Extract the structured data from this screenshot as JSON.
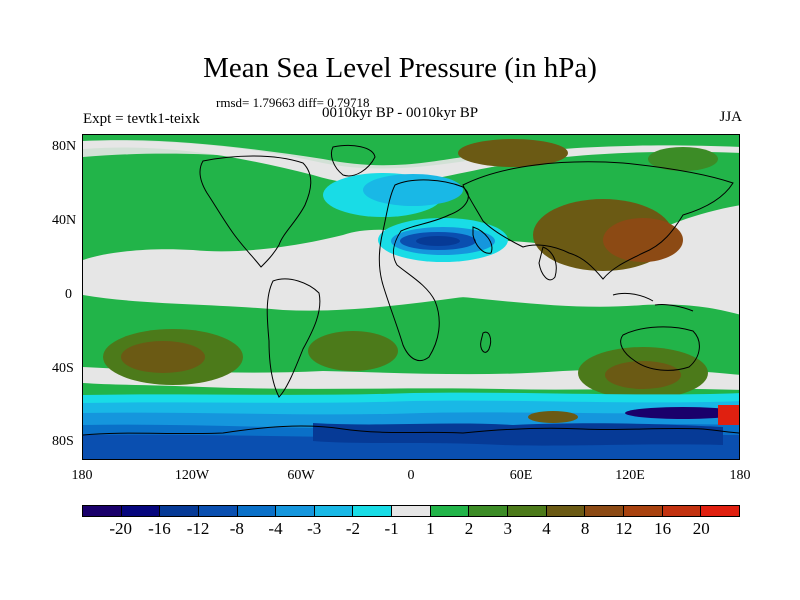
{
  "title": "Mean Sea Level Pressure (in hPa)",
  "stats_line": "rmsd= 1.79663 diff= 0.79718",
  "experiment": "Expt = tevtk1-teixk",
  "period": "0010kyr BP - 0010kyr BP",
  "season": "JJA",
  "lat_labels": [
    "80N",
    "40N",
    "0",
    "40S",
    "80S"
  ],
  "lon_labels": [
    "180",
    "120W",
    "60W",
    "0",
    "60E",
    "120E",
    "180"
  ],
  "colorbar": {
    "colors": [
      "#1a006b",
      "#06067d",
      "#063a96",
      "#0a4fb0",
      "#0a70c8",
      "#1596dd",
      "#19b8e6",
      "#19dce6",
      "#e6e6e6",
      "#22b449",
      "#3c8c26",
      "#4c7a1a",
      "#6b5a14",
      "#8c4a14",
      "#a8420f",
      "#c23210",
      "#e02010"
    ],
    "labels": [
      "-20",
      "-16",
      "-12",
      "-8",
      "-4",
      "-3",
      "-2",
      "-1",
      "1",
      "2",
      "3",
      "4",
      "8",
      "12",
      "16",
      "20"
    ]
  }
}
